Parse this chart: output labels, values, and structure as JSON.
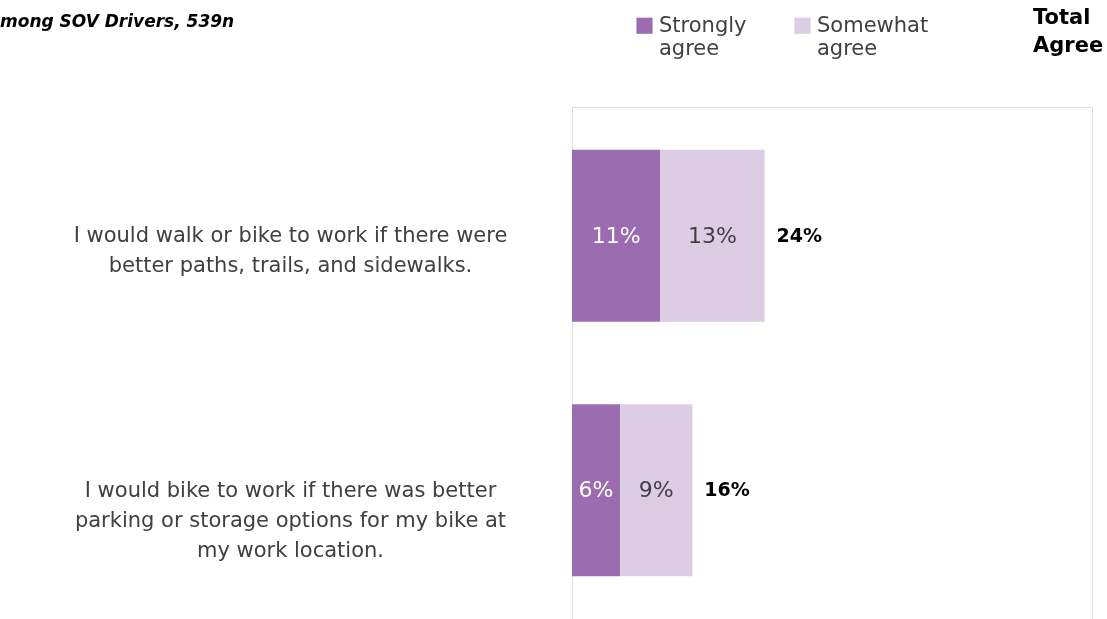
{
  "chart_data": {
    "type": "bar",
    "orientation": "horizontal",
    "stacked": true,
    "title": "mong SOV Drivers, 539n",
    "categories": [
      "I would walk or bike to work if there were better paths, trails, and sidewalks.",
      "I would bike to work if there was better parking or storage options for my bike at my work location."
    ],
    "series": [
      {
        "name": "Strongly agree",
        "color": "#9b6caf",
        "values": [
          11,
          6
        ],
        "value_labels": [
          "11%",
          "6%"
        ]
      },
      {
        "name": "Somewhat agree",
        "color": "#dccde5",
        "values": [
          13,
          9
        ],
        "value_labels": [
          "13%",
          "9%"
        ]
      }
    ],
    "data_labels": true,
    "totals": [
      "24%",
      "16%"
    ],
    "annotations": [
      "Total Agree"
    ],
    "legend": "top right",
    "tick_labels": "y",
    "grid": false
  }
}
